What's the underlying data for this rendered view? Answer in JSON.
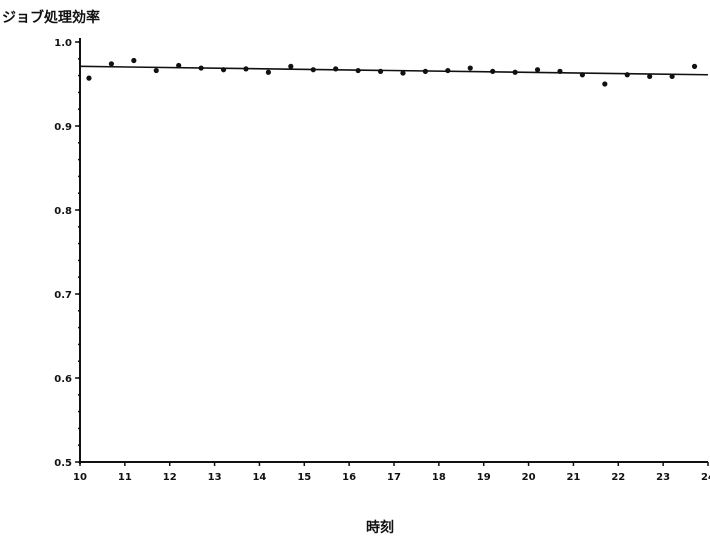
{
  "chart_data": {
    "type": "scatter",
    "title": "ジョブ処理効率",
    "xlabel": "時刻",
    "ylabel": "",
    "xlim": [
      10,
      24
    ],
    "ylim": [
      0.5,
      1.0
    ],
    "x_ticks": [
      10,
      11,
      12,
      13,
      14,
      15,
      16,
      17,
      18,
      19,
      20,
      21,
      22,
      23,
      24
    ],
    "x_tick_labels": [
      "10",
      "11",
      "12",
      "13",
      "14",
      "15",
      "16",
      "17",
      "18",
      "19",
      "20",
      "21",
      "22",
      "23",
      "24"
    ],
    "y_ticks": [
      0.5,
      0.6,
      0.7,
      0.8,
      0.9,
      1.0
    ],
    "y_tick_labels": [
      "0.5",
      "0.6",
      "0.7",
      "0.8",
      "0.9",
      "1.0"
    ],
    "grid": false,
    "series": [
      {
        "values_x": [
          10.2,
          10.7,
          11.2,
          11.7,
          12.2,
          12.7,
          13.2,
          13.7,
          14.2,
          14.7,
          15.2,
          15.7,
          16.2,
          16.7,
          17.2,
          17.7,
          18.2,
          18.7,
          19.2,
          19.7,
          20.2,
          20.7,
          21.2,
          21.7,
          22.2,
          22.7,
          23.2,
          23.7
        ],
        "values_y": [
          0.957,
          0.974,
          0.978,
          0.966,
          0.972,
          0.969,
          0.967,
          0.968,
          0.964,
          0.971,
          0.967,
          0.968,
          0.966,
          0.965,
          0.963,
          0.965,
          0.966,
          0.969,
          0.965,
          0.964,
          0.967,
          0.965,
          0.961,
          0.95,
          0.961,
          0.959,
          0.959,
          0.971
        ]
      }
    ],
    "trend_line": {
      "x": [
        10,
        24
      ],
      "y": [
        0.971,
        0.961
      ]
    }
  }
}
